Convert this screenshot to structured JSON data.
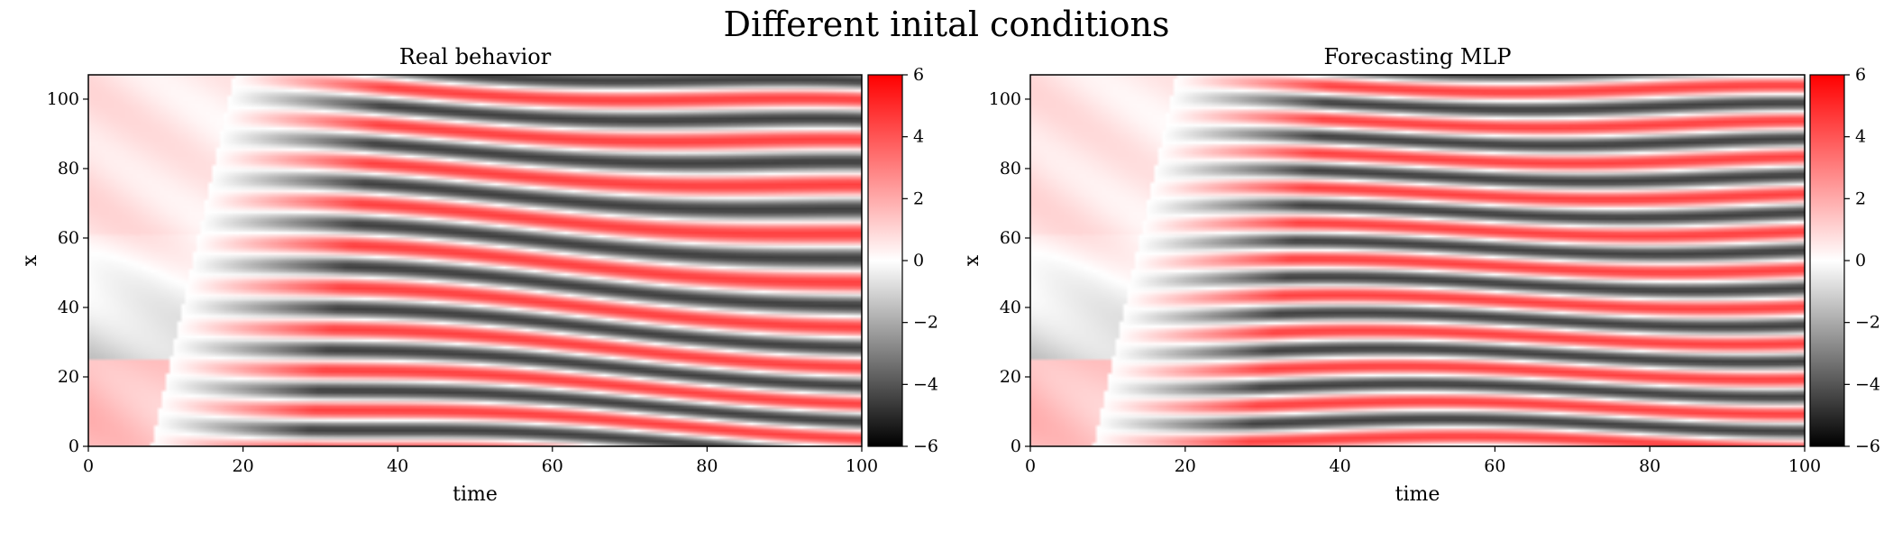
{
  "figure": {
    "suptitle": "Different inital conditions"
  },
  "colormap": {
    "name": "diverging black-white-red",
    "low": "#000000",
    "mid": "#ffffff",
    "high": "#ff0000"
  },
  "chart_data": [
    {
      "type": "heatmap",
      "title": "Real behavior",
      "xlabel": "time",
      "ylabel": "x",
      "xlim": [
        0,
        100
      ],
      "ylim": [
        0,
        107
      ],
      "xticks": [
        0,
        20,
        40,
        60,
        80,
        100
      ],
      "yticks": [
        0,
        20,
        40,
        60,
        80,
        100
      ],
      "colorbar": {
        "vmin": -6,
        "vmax": 6,
        "ticks": [
          6,
          4,
          2,
          0,
          -2,
          -4,
          -6
        ],
        "tick_labels": [
          "6",
          "4",
          "2",
          "0",
          "−2",
          "−4",
          "−6"
        ]
      },
      "grid": false
    },
    {
      "type": "heatmap",
      "title": "Forecasting MLP",
      "xlabel": "time",
      "ylabel": "x",
      "xlim": [
        0,
        100
      ],
      "ylim": [
        0,
        107
      ],
      "xticks": [
        0,
        20,
        40,
        60,
        80,
        100
      ],
      "yticks": [
        0,
        20,
        40,
        60,
        80,
        100
      ],
      "colorbar": {
        "vmin": -6,
        "vmax": 6,
        "ticks": [
          6,
          4,
          2,
          0,
          -2,
          -4,
          -6
        ],
        "tick_labels": [
          "6",
          "4",
          "2",
          "0",
          "−2",
          "−4",
          "−6"
        ]
      },
      "grid": false
    }
  ]
}
